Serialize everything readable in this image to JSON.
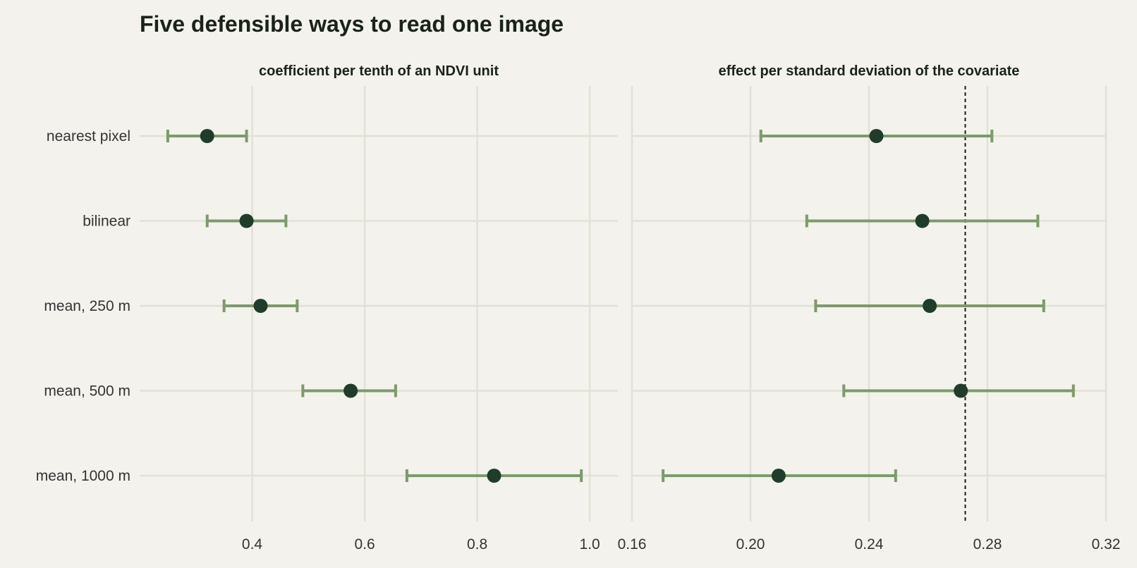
{
  "chart_data": {
    "type": "errorbar",
    "title": "Five defensible ways to read one image",
    "categories": [
      "nearest pixel",
      "bilinear",
      "mean, 250 m",
      "mean, 500 m",
      "mean, 1000 m"
    ],
    "panels": [
      {
        "title": "coefficient per tenth of an NDVI unit",
        "xlim": [
          0.2,
          1.05
        ],
        "xticks": [
          0.4,
          0.6,
          0.8,
          1.0
        ],
        "xtick_labels": [
          "0.4",
          "0.6",
          "0.8",
          "1.0"
        ],
        "estimates": [
          0.32,
          0.39,
          0.415,
          0.575,
          0.83
        ],
        "lower": [
          0.25,
          0.32,
          0.35,
          0.49,
          0.675
        ],
        "upper": [
          0.39,
          0.46,
          0.48,
          0.655,
          0.985
        ],
        "reference_line": null
      },
      {
        "title": "effect per standard deviation of the covariate",
        "xlim": [
          0.16,
          0.32
        ],
        "xticks": [
          0.16,
          0.2,
          0.24,
          0.28,
          0.32
        ],
        "xtick_labels": [
          "0.16",
          "0.20",
          "0.24",
          "0.28",
          "0.32"
        ],
        "estimates": [
          0.2425,
          0.258,
          0.2605,
          0.271,
          0.2095
        ],
        "lower": [
          0.2035,
          0.219,
          0.222,
          0.2315,
          0.1705
        ],
        "upper": [
          0.2815,
          0.297,
          0.299,
          0.309,
          0.249
        ],
        "reference_line": 0.2725
      }
    ],
    "colors": {
      "background": "#f3f2ec",
      "grid": "#e2e1d7",
      "point": "#1f3d2a",
      "interval": "#7d9a6c",
      "text": "#1a221b",
      "tick_text": "#333333"
    }
  }
}
